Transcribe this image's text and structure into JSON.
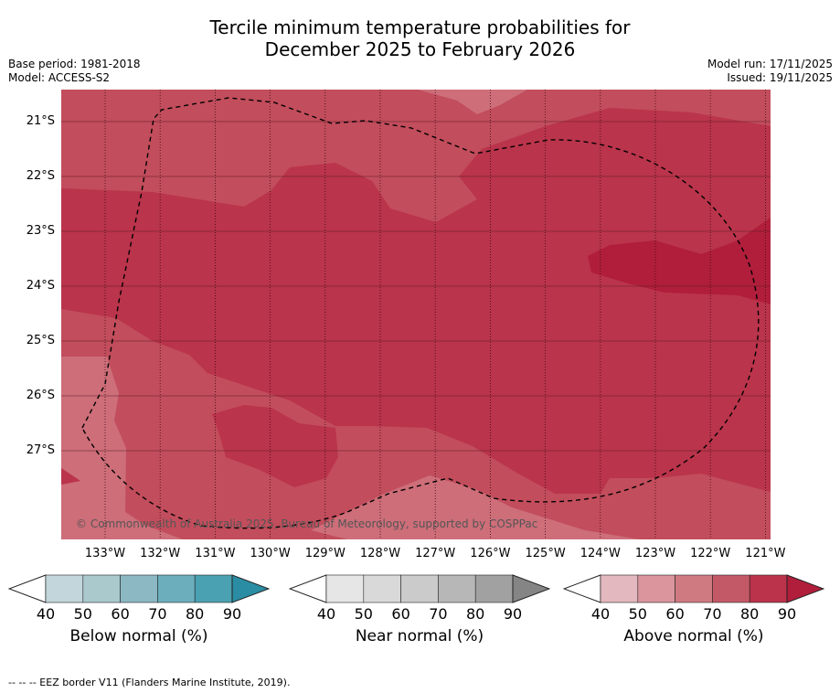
{
  "title_line1": "Tercile minimum temperature probabilities for",
  "title_line2": "December 2025 to February 2026",
  "base_period": "Base period: 1981-2018",
  "model": "Model: ACCESS-S2",
  "model_run": "Model run: 17/11/2025",
  "issued": "Issued: 19/11/2025",
  "copyright": "© Commonwealth of Australia 2025, Bureau of Meteorology, supported by COSPPac",
  "lat_labels": [
    "21°S",
    "22°S",
    "23°S",
    "24°S",
    "25°S",
    "26°S",
    "27°S"
  ],
  "lon_labels": [
    "133°W",
    "132°W",
    "131°W",
    "130°W",
    "129°W",
    "128°W",
    "127°W",
    "126°W",
    "125°W",
    "124°W",
    "123°W",
    "122°W",
    "121°W"
  ],
  "colorbars": [
    {
      "label": "Below normal (%)",
      "ticks": [
        "40",
        "50",
        "60",
        "70",
        "80",
        "90"
      ],
      "colors": [
        "#ffffff",
        "#c2d6dc",
        "#a9c9cd",
        "#8cb8c3",
        "#6caebc",
        "#4aa1b2",
        "#2b8da3"
      ]
    },
    {
      "label": "Near normal (%)",
      "ticks": [
        "40",
        "50",
        "60",
        "70",
        "80",
        "90"
      ],
      "colors": [
        "#ffffff",
        "#e6e6e6",
        "#d9d9d9",
        "#cbcbcb",
        "#b7b7b7",
        "#a1a1a1",
        "#858585"
      ]
    },
    {
      "label": "Above normal (%)",
      "ticks": [
        "40",
        "50",
        "60",
        "70",
        "80",
        "90"
      ],
      "colors": [
        "#ffffff",
        "#e3b8be",
        "#da959d",
        "#cf7a81",
        "#c35966",
        "#ba334a",
        "#b01e3b"
      ]
    }
  ],
  "map_colors": {
    "p60": "#cd6e79",
    "p70": "#c24d5c",
    "p80": "#ba344b",
    "p90": "#b01e3b"
  },
  "footnote": "--  --  -- EEZ border V11 (Flanders Marine Institute, 2019)."
}
